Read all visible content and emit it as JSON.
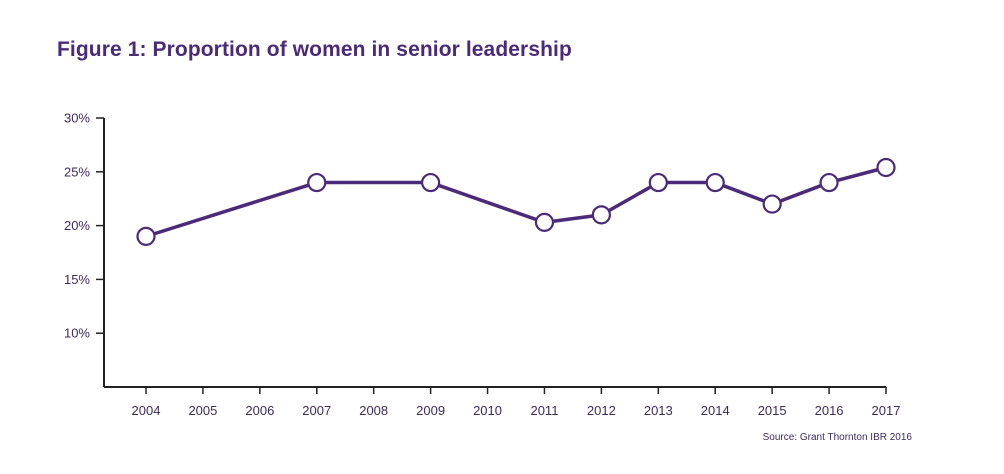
{
  "chart_data": {
    "type": "line",
    "title": "Figure 1: Proportion of women in senior leadership",
    "xlabel": "",
    "ylabel": "",
    "x_ticks": [
      "2004",
      "2005",
      "2006",
      "2007",
      "2008",
      "2009",
      "2010",
      "2011",
      "2012",
      "2013",
      "2014",
      "2015",
      "2016",
      "2017"
    ],
    "y_ticks": [
      "30%",
      "25%",
      "20%",
      "15%",
      "10%"
    ],
    "ylim": [
      5,
      30
    ],
    "y_unit": "%",
    "grid": false,
    "series": [
      {
        "points": [
          {
            "x": "2004",
            "y": 19
          },
          {
            "x": "2007",
            "y": 24
          },
          {
            "x": "2009",
            "y": 24
          },
          {
            "x": "2011",
            "y": 20.3
          },
          {
            "x": "2012",
            "y": 21
          },
          {
            "x": "2013",
            "y": 24
          },
          {
            "x": "2014",
            "y": 24
          },
          {
            "x": "2015",
            "y": 22
          },
          {
            "x": "2016",
            "y": 24
          },
          {
            "x": "2017",
            "y": 25.4
          }
        ]
      }
    ],
    "source": "Source: Grant Thornton IBR 2016",
    "colors": {
      "line": "#4b2a7a",
      "text": "#3d2a5f",
      "axis": "#222222",
      "marker_fill": "#ffffff"
    }
  }
}
